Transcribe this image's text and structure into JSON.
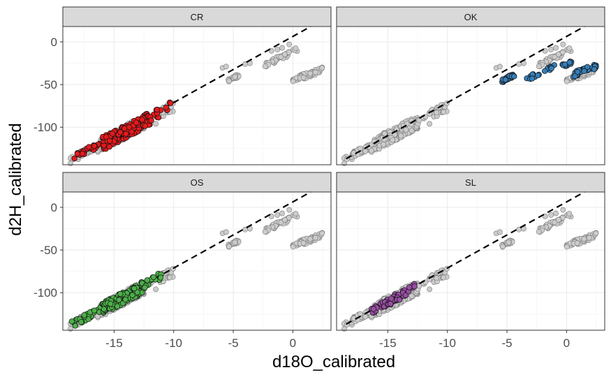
{
  "chart_data": {
    "type": "scatter",
    "facet_layout": "2x2",
    "xlabel": "d18O_calibrated",
    "ylabel": "d2H_calibrated",
    "xlim": [
      -19.3,
      3.2
    ],
    "ylim": [
      -144,
      18
    ],
    "x_ticks": [
      -15,
      -10,
      -5,
      0
    ],
    "y_ticks": [
      0,
      -50,
      -100
    ],
    "grid": true,
    "reference_line": {
      "style": "dashed",
      "color": "#000000",
      "x": [
        -18.5,
        1.5
      ],
      "y": [
        -137,
        18
      ]
    },
    "colors": {
      "CR": "#e41a1c",
      "OK": "#377eb8",
      "OS": "#4daf4a",
      "SL": "#984ea3",
      "background_points": "#c8c8c8"
    },
    "background_points": {
      "clusters": [
        {
          "x_range": [
            -18.7,
            -16.5
          ],
          "y_base": -138,
          "slope": 7.6,
          "spread": 4,
          "n": 45
        },
        {
          "x_range": [
            -16.5,
            -12.5
          ],
          "y_base": -138,
          "slope": 7.4,
          "spread": 8,
          "n": 220
        },
        {
          "x_range": [
            -12.5,
            -10.0
          ],
          "y_base": -138,
          "slope": 7.3,
          "spread": 6,
          "n": 30
        },
        {
          "x_range": [
            -5.5,
            -4.5
          ],
          "y_base": -138,
          "slope": 7.0,
          "spread": 2,
          "n": 22
        },
        {
          "x_range": [
            -2.5,
            0.5
          ],
          "y_base": -138,
          "slope": 6.8,
          "spread": 3,
          "n": 35
        },
        {
          "x_range": [
            0.0,
            2.5
          ],
          "y_base": -138,
          "slope": 5.0,
          "spread": 3,
          "n": 60
        }
      ],
      "extra": [
        [
          -5.9,
          -30.5
        ],
        [
          -5.6,
          -29.0
        ],
        [
          -3.6,
          -25.0
        ],
        [
          -1.8,
          -10.5
        ],
        [
          -1.3,
          -9.0
        ],
        [
          -0.3,
          -3.0
        ],
        [
          -0.9,
          -7.0
        ],
        [
          -4.0,
          -26.0
        ],
        [
          -13.0,
          -104.0
        ],
        [
          -11.5,
          -96.0
        ]
      ]
    },
    "panels": [
      {
        "label": "CR",
        "color": "#e41a1c",
        "highlight": [
          {
            "x_range": [
              -18.5,
              -16.0
            ],
            "y_base": -138,
            "slope": 7.7,
            "spread": 4,
            "n": 25
          },
          {
            "x_range": [
              -16.0,
              -12.0
            ],
            "y_base": -138,
            "slope": 7.4,
            "spread": 8,
            "n": 170
          },
          {
            "x_range": [
              -12.0,
              -10.2
            ],
            "y_base": -138,
            "slope": 7.6,
            "spread": 6,
            "n": 14
          }
        ]
      },
      {
        "label": "OK",
        "color": "#377eb8",
        "highlight": [
          {
            "x_range": [
              -5.5,
              -4.4
            ],
            "y_base": -137,
            "slope": 6.9,
            "spread": 2,
            "n": 26
          },
          {
            "x_range": [
              -3.5,
              -1.0
            ],
            "y_base": -138,
            "slope": 6.2,
            "spread": 2.5,
            "n": 18
          },
          {
            "x_range": [
              -0.5,
              0.5
            ],
            "y_base": -138,
            "slope": 6.0,
            "spread": 2,
            "n": 14
          },
          {
            "x_range": [
              0.5,
              2.5
            ],
            "y_base": -138,
            "slope": 5.2,
            "spread": 3,
            "n": 45
          }
        ]
      },
      {
        "label": "OS",
        "color": "#4daf4a",
        "highlight": [
          {
            "x_range": [
              -18.6,
              -16.0
            ],
            "y_base": -138,
            "slope": 7.6,
            "spread": 4,
            "n": 30
          },
          {
            "x_range": [
              -16.0,
              -12.5
            ],
            "y_base": -138,
            "slope": 7.5,
            "spread": 7,
            "n": 130
          },
          {
            "x_range": [
              -12.5,
              -11.0
            ],
            "y_base": -138,
            "slope": 7.7,
            "spread": 5,
            "n": 15
          }
        ]
      },
      {
        "label": "SL",
        "color": "#984ea3",
        "highlight": [
          {
            "x_range": [
              -16.5,
              -15.0
            ],
            "y_base": -138,
            "slope": 7.4,
            "spread": 4,
            "n": 30
          },
          {
            "x_range": [
              -15.0,
              -13.5
            ],
            "y_base": -138,
            "slope": 7.6,
            "spread": 5,
            "n": 35
          },
          {
            "x_range": [
              -13.5,
              -12.7
            ],
            "y_base": -138,
            "slope": 8.0,
            "spread": 4,
            "n": 6
          }
        ]
      }
    ]
  }
}
